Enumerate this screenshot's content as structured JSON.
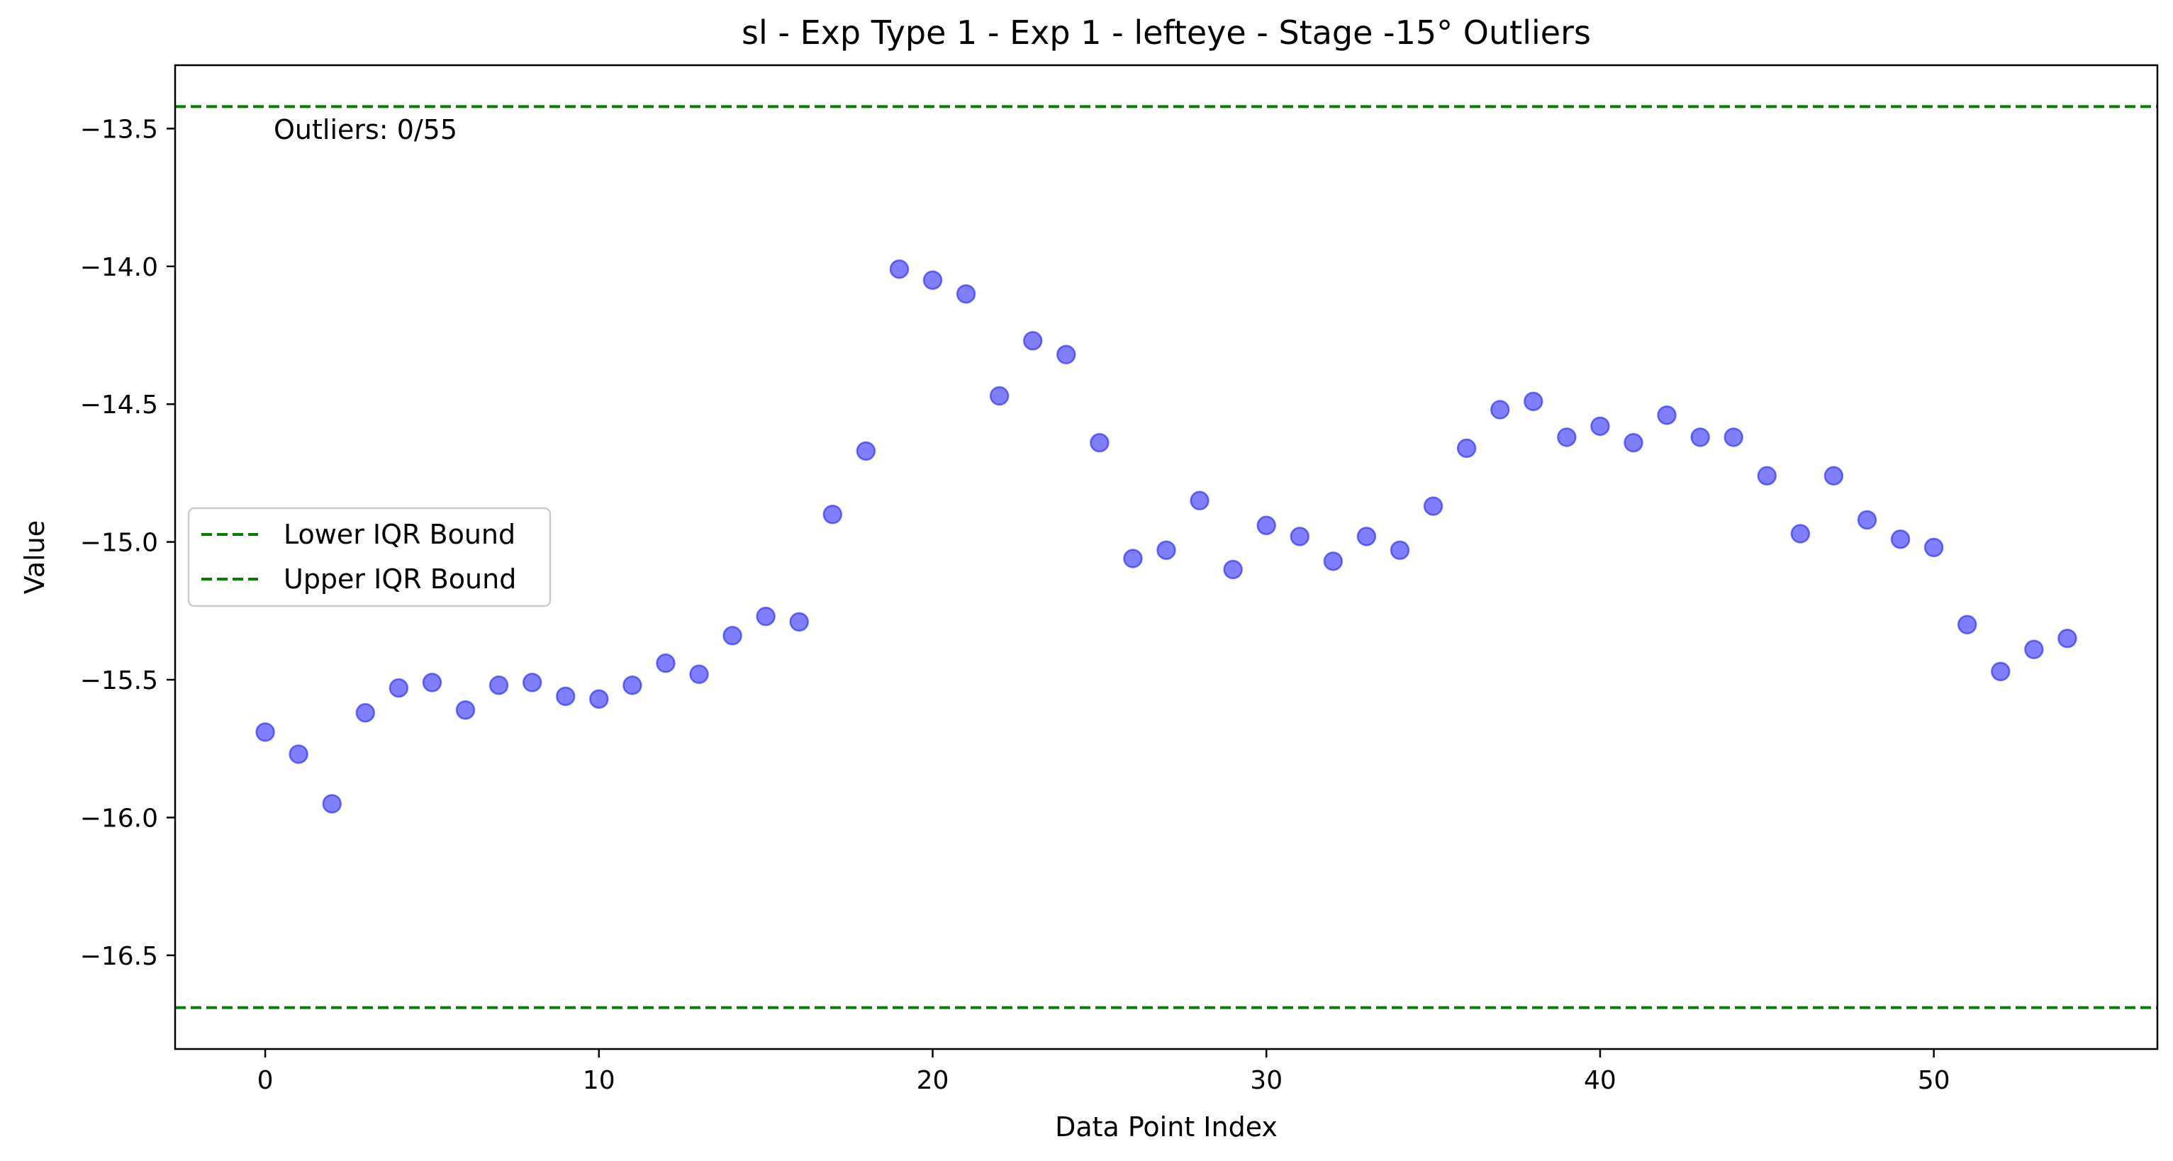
{
  "chart_data": {
    "type": "scatter",
    "title": "sl - Exp Type 1 - Exp 1 - lefteye - Stage -15° Outliers",
    "xlabel": "Data Point Index",
    "ylabel": "Value",
    "xlim": [
      -2.7,
      56.7
    ],
    "ylim": [
      -16.84,
      -13.27
    ],
    "x_ticks": [
      0,
      10,
      20,
      30,
      40,
      50
    ],
    "y_ticks": [
      -13.5,
      -14.0,
      -14.5,
      -15.0,
      -15.5,
      -16.0,
      -16.5
    ],
    "y_tick_labels": [
      "−13.5",
      "−14.0",
      "−14.5",
      "−15.0",
      "−15.5",
      "−16.0",
      "−16.5"
    ],
    "grid": false,
    "legend": {
      "placement": "center-left",
      "entries": [
        {
          "label": "Lower IQR Bound",
          "color": "#008000",
          "style": "dashed"
        },
        {
          "label": "Upper IQR Bound",
          "color": "#008000",
          "style": "dashed"
        }
      ]
    },
    "lower_bound": -16.69,
    "upper_bound": -13.42,
    "annotation": "Outliers: 0/55",
    "point_color": "#0000ff",
    "point_alpha": 0.5,
    "series": [
      {
        "x": [
          0,
          1,
          2,
          3,
          4,
          5,
          6,
          7,
          8,
          9,
          10,
          11,
          12,
          13,
          14,
          15,
          16,
          17,
          18,
          19,
          20,
          21,
          22,
          23,
          24,
          25,
          26,
          27,
          28,
          29,
          30,
          31,
          32,
          33,
          34,
          35,
          36,
          37,
          38,
          39,
          40,
          41,
          42,
          43,
          44,
          45,
          46,
          47,
          48,
          49,
          50,
          51,
          52,
          53,
          54
        ],
        "y": [
          -15.69,
          -15.77,
          -15.95,
          -15.62,
          -15.53,
          -15.51,
          -15.61,
          -15.52,
          -15.51,
          -15.56,
          -15.57,
          -15.52,
          -15.44,
          -15.48,
          -15.34,
          -15.27,
          -15.29,
          -14.9,
          -14.67,
          -14.01,
          -14.05,
          -14.1,
          -14.47,
          -14.27,
          -14.32,
          -14.64,
          -15.06,
          -15.03,
          -14.85,
          -15.1,
          -14.94,
          -14.98,
          -15.07,
          -14.98,
          -15.03,
          -14.87,
          -14.66,
          -14.52,
          -14.49,
          -14.62,
          -14.58,
          -14.64,
          -14.54,
          -14.62,
          -14.62,
          -14.76,
          -14.97,
          -14.76,
          -14.92,
          -14.99,
          -15.02,
          -15.3,
          -15.47,
          -15.39,
          -15.35
        ]
      }
    ]
  }
}
